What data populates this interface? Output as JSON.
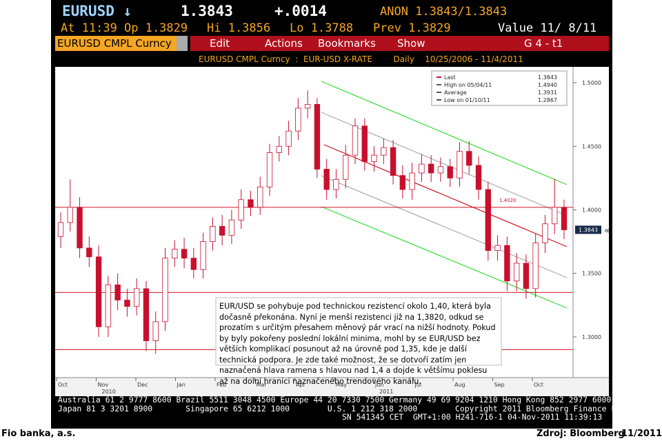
{
  "header": {
    "ticker": "EURUSD ↓",
    "last": "1.3843",
    "change": "+.0014",
    "bid_ask": "ANON 1.3843/1.3843",
    "time": "At 11:39",
    "open": "Op 1.3829",
    "high": "Hi 1.3856",
    "low": "Lo 1.3788",
    "prev": "Prev 1.3829",
    "value_date": "Value 11/ 8/11"
  },
  "toolbar": {
    "security": "EURUSD CMPL Curncy",
    "menus": [
      "Edit",
      "Actions",
      "Bookmarks",
      "Show"
    ],
    "function": "G 4 - t1"
  },
  "chart_data": {
    "type": "candlestick",
    "title": "EURUSD CMPL Curncy  :  EUR-USD X-RATE        Daily    10/25/2006 - 11/4/2011",
    "open": [
      1.379,
      1.39,
      1.402,
      1.37,
      1.363,
      1.308,
      1.341,
      1.329,
      1.324,
      1.338,
      1.297,
      1.312,
      1.362,
      1.369,
      1.362,
      1.353,
      1.375,
      1.387,
      1.38,
      1.392,
      1.408,
      1.402,
      1.418,
      1.445,
      1.45,
      1.462,
      1.48,
      1.483,
      1.432,
      1.416,
      1.424,
      1.443,
      1.466,
      1.438,
      1.443,
      1.449,
      1.427,
      1.416,
      1.429,
      1.436,
      1.429,
      1.434,
      1.425,
      1.446,
      1.435,
      1.416,
      1.368,
      1.372,
      1.344,
      1.358,
      1.338,
      1.374,
      1.389,
      1.402
    ],
    "high": [
      1.398,
      1.424,
      1.41,
      1.379,
      1.372,
      1.348,
      1.35,
      1.338,
      1.346,
      1.344,
      1.32,
      1.37,
      1.376,
      1.378,
      1.37,
      1.382,
      1.394,
      1.396,
      1.4,
      1.416,
      1.415,
      1.426,
      1.452,
      1.458,
      1.47,
      1.488,
      1.494,
      1.488,
      1.44,
      1.432,
      1.451,
      1.472,
      1.472,
      1.45,
      1.456,
      1.455,
      1.435,
      1.437,
      1.444,
      1.443,
      1.441,
      1.44,
      1.453,
      1.454,
      1.442,
      1.422,
      1.38,
      1.379,
      1.366,
      1.365,
      1.381,
      1.396,
      1.4245,
      1.408
    ],
    "low": [
      1.37,
      1.383,
      1.362,
      1.355,
      1.3,
      1.3,
      1.321,
      1.316,
      1.317,
      1.289,
      1.2867,
      1.305,
      1.355,
      1.354,
      1.346,
      1.346,
      1.368,
      1.372,
      1.373,
      1.385,
      1.395,
      1.396,
      1.411,
      1.438,
      1.443,
      1.455,
      1.472,
      1.425,
      1.408,
      1.409,
      1.417,
      1.436,
      1.431,
      1.43,
      1.436,
      1.42,
      1.409,
      1.408,
      1.422,
      1.422,
      1.422,
      1.418,
      1.418,
      1.428,
      1.408,
      1.36,
      1.36,
      1.336,
      1.336,
      1.33,
      1.331,
      1.366,
      1.381,
      1.377
    ],
    "close": [
      1.39,
      1.402,
      1.37,
      1.363,
      1.308,
      1.341,
      1.329,
      1.324,
      1.338,
      1.297,
      1.312,
      1.362,
      1.369,
      1.362,
      1.353,
      1.375,
      1.387,
      1.38,
      1.392,
      1.408,
      1.402,
      1.418,
      1.445,
      1.45,
      1.462,
      1.48,
      1.483,
      1.432,
      1.416,
      1.424,
      1.443,
      1.466,
      1.438,
      1.443,
      1.449,
      1.427,
      1.416,
      1.429,
      1.436,
      1.429,
      1.434,
      1.425,
      1.446,
      1.435,
      1.416,
      1.368,
      1.372,
      1.344,
      1.358,
      1.338,
      1.374,
      1.389,
      1.402,
      1.3843
    ],
    "up_color": "#ffffff",
    "down_color": "#c8102e",
    "ylim": [
      1.268,
      1.5125
    ],
    "yticks": [
      {
        "value": 1.3,
        "label": "1.3000"
      },
      {
        "value": 1.35,
        "label": "1.3500"
      },
      {
        "value": 1.4,
        "label": "1.4000"
      },
      {
        "value": 1.45,
        "label": "1.4500"
      },
      {
        "value": 1.5,
        "label": "1.5000"
      }
    ],
    "x_labels": [
      "Oct",
      "Nov",
      "Dec",
      "Jan",
      "Feb",
      "Mar",
      "Apr",
      "May",
      "Jun",
      "Jul",
      "Aug",
      "Sep",
      "Oct"
    ],
    "x_label_years": [
      null,
      "2010",
      null,
      null,
      null,
      null,
      null,
      null,
      "2011",
      null,
      null,
      null,
      null
    ],
    "level_lines": [
      {
        "value": 1.402,
        "label": "1.4020"
      },
      {
        "value": 1.335
      },
      {
        "value": 1.29
      }
    ],
    "level_color": "#d01020",
    "last_price": {
      "value": 1.3843,
      "label": "1.3843"
    },
    "legend": [
      {
        "name": "Last",
        "value": "1.3843"
      },
      {
        "name": "High on 05/04/11",
        "value": "1.4940"
      },
      {
        "name": "Average",
        "value": "1.3931"
      },
      {
        "name": "Low on 01/10/11",
        "value": "1.2867"
      }
    ],
    "annotation": "EUR/USD se pohybuje pod technickou rezistencí okolo 1,40, která byla dočasně překonána. Nyní je menší rezistenci již na 1,3820, odkud se prozatím s určitým přesahem měnový pár vrací na nižší hodnoty. Pokud by byly pokořeny poslední lokální minima, mohl by se EUR/USD bez větších komplikací posunout až na úrovně pod 1,35, kde je další technická podpora. Je zde také možnost, že se dotvoří zatím jen naznačená hlava ramena s hlavou nad 1,4 a dojde k většímu poklesu až na dolní hranici naznačeného trendového kanálu."
  },
  "footer": {
    "lines": [
      "Australia 61 2 9777 8600 Brazil 5511 3048 4500 Europe 44 20 7330 7500 Germany 49 69 9204 1210 Hong Kong 852 2977 6000",
      "Japan 81 3 3201 8900       Singapore 65 6212 1000        U.S. 1 212 318 2000        Copyright 2011 Bloomberg Finance L.P.",
      "SN 541345 CET  GMT+1:00 H241-716-1 04-Nov-2011 11:39:13"
    ]
  },
  "page_footer": {
    "left": "Fio banka, a.s.",
    "source": "Zdroj: Bloomberg",
    "date": "11/2011"
  }
}
